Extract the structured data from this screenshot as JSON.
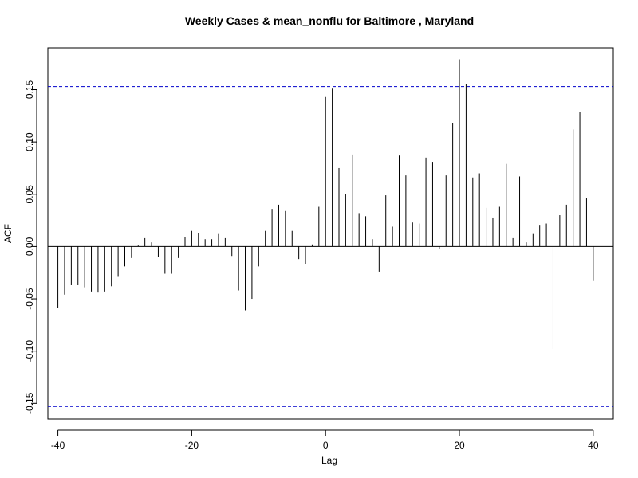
{
  "chart_data": {
    "type": "bar",
    "title": "Weekly Cases & mean_nonflu for Baltimore , Maryland",
    "xlabel": "Lag",
    "ylabel": "ACF",
    "xlim": [
      -41.5,
      43
    ],
    "ylim": [
      -0.165,
      0.19
    ],
    "x_ticks": [
      -40,
      -20,
      0,
      20,
      40
    ],
    "y_ticks": [
      -0.15,
      -0.1,
      -0.05,
      0.0,
      0.05,
      0.1,
      0.15
    ],
    "y_tick_labels": [
      "-0.15",
      "-0.10",
      "-0.05",
      "0.00",
      "0.05",
      "0.10",
      "0.15"
    ],
    "confidence_bounds": [
      0.153,
      -0.153
    ],
    "confidence_color": "#0000cc",
    "grid": false,
    "lags": [
      -40,
      -39,
      -38,
      -37,
      -36,
      -35,
      -34,
      -33,
      -32,
      -31,
      -30,
      -29,
      -28,
      -27,
      -26,
      -25,
      -24,
      -23,
      -22,
      -21,
      -20,
      -19,
      -18,
      -17,
      -16,
      -15,
      -14,
      -13,
      -12,
      -11,
      -10,
      -9,
      -8,
      -7,
      -6,
      -5,
      -4,
      -3,
      -2,
      -1,
      0,
      1,
      2,
      3,
      4,
      5,
      6,
      7,
      8,
      9,
      10,
      11,
      12,
      13,
      14,
      15,
      16,
      17,
      18,
      19,
      20,
      21,
      22,
      23,
      24,
      25,
      26,
      27,
      28,
      29,
      30,
      31,
      32,
      33,
      34,
      35,
      36,
      37,
      38,
      39,
      40
    ],
    "values": [
      -0.059,
      -0.046,
      -0.037,
      -0.037,
      -0.039,
      -0.043,
      -0.044,
      -0.043,
      -0.038,
      -0.029,
      -0.019,
      -0.011,
      0.001,
      0.008,
      0.004,
      -0.01,
      -0.026,
      -0.026,
      -0.011,
      0.009,
      0.015,
      0.013,
      0.007,
      0.007,
      0.012,
      0.008,
      -0.009,
      -0.042,
      -0.061,
      -0.05,
      -0.019,
      0.015,
      0.036,
      0.04,
      0.034,
      0.015,
      -0.012,
      -0.017,
      0.002,
      0.038,
      0.143,
      0.151,
      0.075,
      0.05,
      0.088,
      0.032,
      0.029,
      0.007,
      -0.024,
      0.049,
      0.019,
      0.087,
      0.068,
      0.023,
      0.022,
      0.085,
      0.081,
      -0.002,
      0.068,
      0.118,
      0.179,
      0.155,
      0.066,
      0.07,
      0.037,
      0.027,
      0.038,
      0.079,
      0.008,
      0.067,
      0.004,
      0.012,
      0.02,
      0.022,
      -0.098,
      0.03,
      0.04,
      0.112,
      0.129,
      0.046,
      -0.033
    ]
  }
}
